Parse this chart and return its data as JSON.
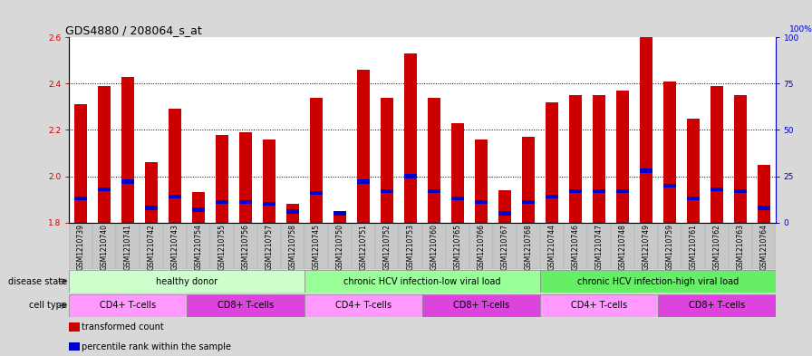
{
  "title": "GDS4880 / 208064_s_at",
  "samples": [
    "GSM1210739",
    "GSM1210740",
    "GSM1210741",
    "GSM1210742",
    "GSM1210743",
    "GSM1210754",
    "GSM1210755",
    "GSM1210756",
    "GSM1210757",
    "GSM1210758",
    "GSM1210745",
    "GSM1210750",
    "GSM1210751",
    "GSM1210752",
    "GSM1210753",
    "GSM1210760",
    "GSM1210765",
    "GSM1210766",
    "GSM1210767",
    "GSM1210768",
    "GSM1210744",
    "GSM1210746",
    "GSM1210747",
    "GSM1210748",
    "GSM1210749",
    "GSM1210759",
    "GSM1210761",
    "GSM1210762",
    "GSM1210763",
    "GSM1210764"
  ],
  "transformed_count": [
    2.31,
    2.39,
    2.43,
    2.06,
    2.29,
    1.93,
    2.18,
    2.19,
    2.16,
    1.88,
    2.34,
    1.83,
    2.46,
    2.34,
    2.53,
    2.34,
    2.23,
    2.16,
    1.94,
    2.17,
    2.32,
    2.35,
    2.35,
    2.37,
    2.6,
    2.41,
    2.25,
    2.39,
    2.35,
    2.05
  ],
  "percentile_rank": [
    13,
    18,
    22,
    8,
    14,
    7,
    11,
    11,
    10,
    6,
    16,
    5,
    22,
    17,
    25,
    17,
    13,
    11,
    5,
    11,
    14,
    17,
    17,
    17,
    28,
    20,
    13,
    18,
    17,
    8
  ],
  "ymin": 1.8,
  "ymax": 2.6,
  "yleft_ticks": [
    1.8,
    2.0,
    2.2,
    2.4,
    2.6
  ],
  "yright_ticks": [
    0,
    25,
    50,
    75,
    100
  ],
  "bar_color": "#cc0000",
  "percentile_color": "#0000cc",
  "background_color": "#d8d8d8",
  "plot_bg_color": "#ffffff",
  "xtick_bg_color": "#c8c8c8",
  "disease_groups": [
    {
      "label": "healthy donor",
      "start": 0,
      "end": 9,
      "color": "#ccffcc"
    },
    {
      "label": "chronic HCV infection-low viral load",
      "start": 10,
      "end": 19,
      "color": "#99ff99"
    },
    {
      "label": "chronic HCV infection-high viral load",
      "start": 20,
      "end": 29,
      "color": "#66ee66"
    }
  ],
  "cell_type_groups": [
    {
      "label": "CD4+ T-cells",
      "start": 0,
      "end": 4,
      "color": "#ff99ff"
    },
    {
      "label": "CD8+ T-cells",
      "start": 5,
      "end": 9,
      "color": "#dd44dd"
    },
    {
      "label": "CD4+ T-cells",
      "start": 10,
      "end": 14,
      "color": "#ff99ff"
    },
    {
      "label": "CD8+ T-cells",
      "start": 15,
      "end": 19,
      "color": "#dd44dd"
    },
    {
      "label": "CD4+ T-cells",
      "start": 20,
      "end": 24,
      "color": "#ff99ff"
    },
    {
      "label": "CD8+ T-cells",
      "start": 25,
      "end": 29,
      "color": "#dd44dd"
    }
  ],
  "legend_items": [
    {
      "label": "transformed count",
      "color": "#cc0000"
    },
    {
      "label": "percentile rank within the sample",
      "color": "#0000cc"
    }
  ],
  "axis_color_left": "#cc0000",
  "axis_color_right": "#0000cc",
  "title_fontsize": 9,
  "tick_fontsize": 6.5,
  "xtick_fontsize": 5.5,
  "group_label_fontsize": 7,
  "legend_fontsize": 7,
  "dotted_lines": [
    2.0,
    2.2,
    2.4
  ],
  "bar_width": 0.55
}
